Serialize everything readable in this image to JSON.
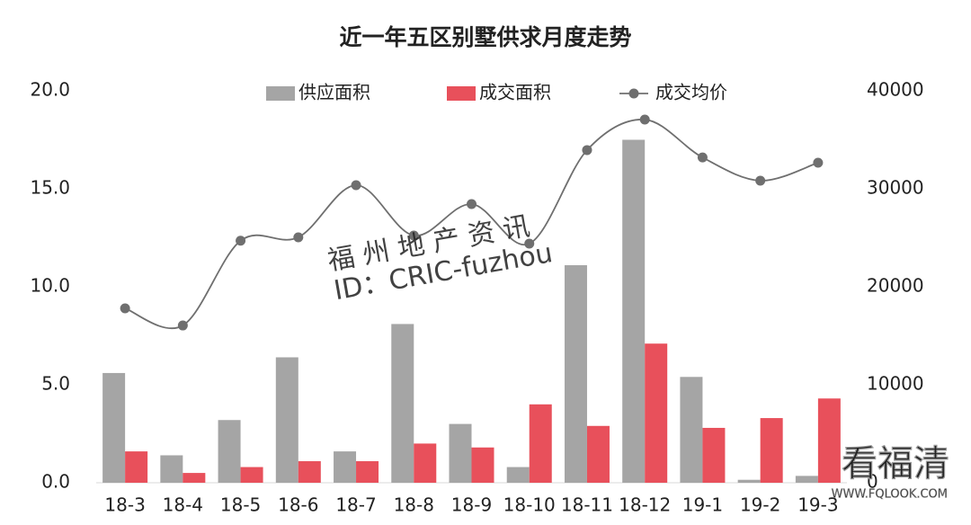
{
  "chart_data": {
    "type": "bar-line",
    "title": "近一年五区别墅供求月度走势",
    "categories": [
      "18-3",
      "18-4",
      "18-5",
      "18-6",
      "18-7",
      "18-8",
      "18-9",
      "18-10",
      "18-11",
      "18-12",
      "19-1",
      "19-2",
      "19-3"
    ],
    "series": [
      {
        "name": "供应面积",
        "type": "bar",
        "color": "#a5a5a5",
        "values": [
          5.6,
          1.4,
          3.2,
          6.4,
          1.6,
          8.1,
          3.0,
          0.8,
          11.1,
          17.5,
          5.4,
          0.15,
          0.35
        ]
      },
      {
        "name": "成交面积",
        "type": "bar",
        "color": "#e8505b",
        "values": [
          1.6,
          0.5,
          0.8,
          1.1,
          1.1,
          2.0,
          1.8,
          4.0,
          2.9,
          7.1,
          2.8,
          3.3,
          4.3
        ]
      },
      {
        "name": "成交均价",
        "type": "line",
        "axis": "y2",
        "color": "#6f6f6f",
        "values": [
          17800,
          16050,
          24700,
          25050,
          30370,
          25230,
          28440,
          24400,
          33950,
          37060,
          33200,
          30830,
          32660
        ]
      }
    ],
    "ylim": [
      0,
      20
    ],
    "yticks": [
      {
        "value": 0,
        "label": "0.0"
      },
      {
        "value": 5,
        "label": "5.0"
      },
      {
        "value": 10,
        "label": "10.0"
      },
      {
        "value": 15,
        "label": "15.0"
      },
      {
        "value": 20,
        "label": "20.0"
      }
    ],
    "y2lim": [
      0,
      40000
    ],
    "y2ticks": [
      0,
      10000,
      20000,
      30000,
      40000
    ],
    "legend": "top",
    "watermarks": [
      "福 州 地 产 资 讯",
      "ID：CRIC-fuzhou",
      "看福清",
      "WWW.FQLOOK.COM"
    ]
  }
}
